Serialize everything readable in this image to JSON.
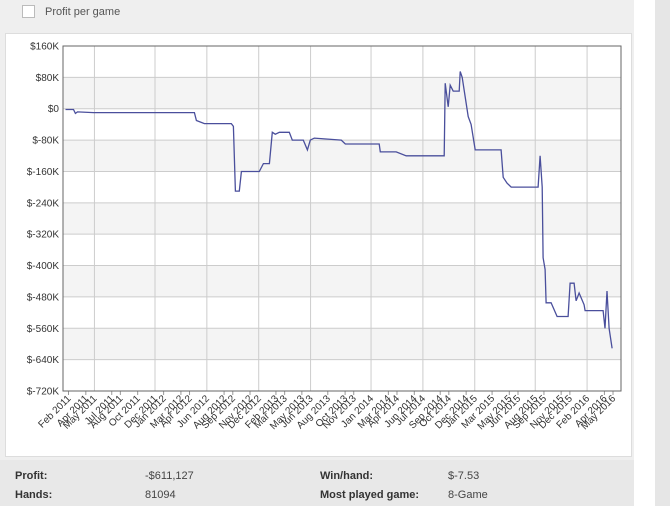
{
  "toggle": {
    "label": "Profit per game"
  },
  "chart_data": {
    "type": "line",
    "xlim": [
      2011.03,
      2016.41
    ],
    "xticks": [
      {
        "value": 2011.083,
        "label": "Feb 2011"
      },
      {
        "value": 2011.25,
        "label": "Apr 2011"
      },
      {
        "value": 2011.333,
        "label": "May 2011"
      },
      {
        "value": 2011.5,
        "label": "Jul 2011"
      },
      {
        "value": 2011.583,
        "label": "Aug 2011"
      },
      {
        "value": 2011.75,
        "label": "Oct 2011"
      },
      {
        "value": 2011.917,
        "label": "Dec 2011"
      },
      {
        "value": 2012.0,
        "label": "Jan 2012"
      },
      {
        "value": 2012.167,
        "label": "Mar 2012"
      },
      {
        "value": 2012.25,
        "label": "Apr 2012"
      },
      {
        "value": 2012.417,
        "label": "Jun 2012"
      },
      {
        "value": 2012.583,
        "label": "Aug 2012"
      },
      {
        "value": 2012.667,
        "label": "Sep 2012"
      },
      {
        "value": 2012.833,
        "label": "Nov 2012"
      },
      {
        "value": 2012.917,
        "label": "Dec 2012"
      },
      {
        "value": 2013.083,
        "label": "Feb 2013"
      },
      {
        "value": 2013.167,
        "label": "Mar 2013"
      },
      {
        "value": 2013.333,
        "label": "May 2013"
      },
      {
        "value": 2013.417,
        "label": "Jun 2013"
      },
      {
        "value": 2013.583,
        "label": "Aug 2013"
      },
      {
        "value": 2013.75,
        "label": "Oct 2013"
      },
      {
        "value": 2013.833,
        "label": "Nov 2013"
      },
      {
        "value": 2014.0,
        "label": "Jan 2014"
      },
      {
        "value": 2014.167,
        "label": "Mar 2014"
      },
      {
        "value": 2014.25,
        "label": "Apr 2014"
      },
      {
        "value": 2014.417,
        "label": "Jun 2014"
      },
      {
        "value": 2014.5,
        "label": "Jul 2014"
      },
      {
        "value": 2014.667,
        "label": "Sep 2014"
      },
      {
        "value": 2014.75,
        "label": "Oct 2014"
      },
      {
        "value": 2014.917,
        "label": "Dec 2014"
      },
      {
        "value": 2015.0,
        "label": "Jan 2015"
      },
      {
        "value": 2015.167,
        "label": "Mar 2015"
      },
      {
        "value": 2015.333,
        "label": "May 2015"
      },
      {
        "value": 2015.417,
        "label": "Jun 2015"
      },
      {
        "value": 2015.583,
        "label": "Aug 2015"
      },
      {
        "value": 2015.667,
        "label": "Sep 2015"
      },
      {
        "value": 2015.833,
        "label": "Nov 2015"
      },
      {
        "value": 2015.917,
        "label": "Dec 2015"
      },
      {
        "value": 2016.083,
        "label": "Feb 2016"
      },
      {
        "value": 2016.25,
        "label": "Apr 2016"
      },
      {
        "value": 2016.333,
        "label": "May 2016"
      }
    ],
    "ylim": [
      -720000,
      160000
    ],
    "yticks": [
      {
        "value": 160000,
        "label": "$160K"
      },
      {
        "value": 80000,
        "label": "$80K"
      },
      {
        "value": 0,
        "label": "$0"
      },
      {
        "value": -80000,
        "label": "$-80K"
      },
      {
        "value": -160000,
        "label": "$-160K"
      },
      {
        "value": -240000,
        "label": "$-240K"
      },
      {
        "value": -320000,
        "label": "$-320K"
      },
      {
        "value": -400000,
        "label": "$-400K"
      },
      {
        "value": -480000,
        "label": "$-480K"
      },
      {
        "value": -560000,
        "label": "$-560K"
      },
      {
        "value": -640000,
        "label": "$-640K"
      },
      {
        "value": -720000,
        "label": "$-720K"
      }
    ],
    "grid": true,
    "x": [
      2011.054,
      2011.131,
      2011.15,
      2011.17,
      2011.324,
      2011.594,
      2011.863,
      2012.133,
      2012.297,
      2012.316,
      2012.393,
      2012.653,
      2012.673,
      2012.692,
      2012.73,
      2012.75,
      2012.923,
      2012.962,
      2013.02,
      2013.048,
      2013.077,
      2013.116,
      2013.212,
      2013.241,
      2013.347,
      2013.386,
      2013.414,
      2013.453,
      2013.713,
      2013.752,
      2013.954,
      2014.079,
      2014.089,
      2014.243,
      2014.339,
      2014.503,
      2014.705,
      2014.715,
      2014.744,
      2014.763,
      2014.792,
      2014.85,
      2014.86,
      2014.879,
      2014.908,
      2014.937,
      2014.965,
      2015.004,
      2015.254,
      2015.274,
      2015.312,
      2015.351,
      2015.543,
      2015.611,
      2015.63,
      2015.65,
      2015.659,
      2015.678,
      2015.688,
      2015.736,
      2015.794,
      2015.9,
      2015.919,
      2015.958,
      2015.977,
      2016.006,
      2016.054,
      2016.064,
      2016.237,
      2016.256,
      2016.275,
      2016.295,
      2016.324
    ],
    "series": [
      {
        "color": "#4a4f9c",
        "values": [
          -2000,
          -2000,
          -12000,
          -8000,
          -10000,
          -10000,
          -10000,
          -10000,
          -10000,
          -30000,
          -38000,
          -38000,
          -45000,
          -210000,
          -210000,
          -160000,
          -160000,
          -140000,
          -140000,
          -60000,
          -65000,
          -60000,
          -60000,
          -80000,
          -80000,
          -105000,
          -80000,
          -75000,
          -80000,
          -90000,
          -90000,
          -90000,
          -110000,
          -110000,
          -120000,
          -120000,
          -120000,
          65000,
          5000,
          60000,
          45000,
          45000,
          95000,
          80000,
          30000,
          -20000,
          -40000,
          -105000,
          -105000,
          -175000,
          -190000,
          -200000,
          -200000,
          -200000,
          -120000,
          -200000,
          -380000,
          -410000,
          -495000,
          -495000,
          -530000,
          -530000,
          -445000,
          -445000,
          -490000,
          -470000,
          -500000,
          -515000,
          -515000,
          -560000,
          -465000,
          -560000,
          -611127
        ]
      }
    ]
  },
  "stats": {
    "rows": [
      [
        "Profit:",
        "-$611,127",
        "Win/hand:",
        "$-7.53"
      ],
      [
        "Hands:",
        "81094",
        "Most played game:",
        "8-Game"
      ]
    ]
  }
}
